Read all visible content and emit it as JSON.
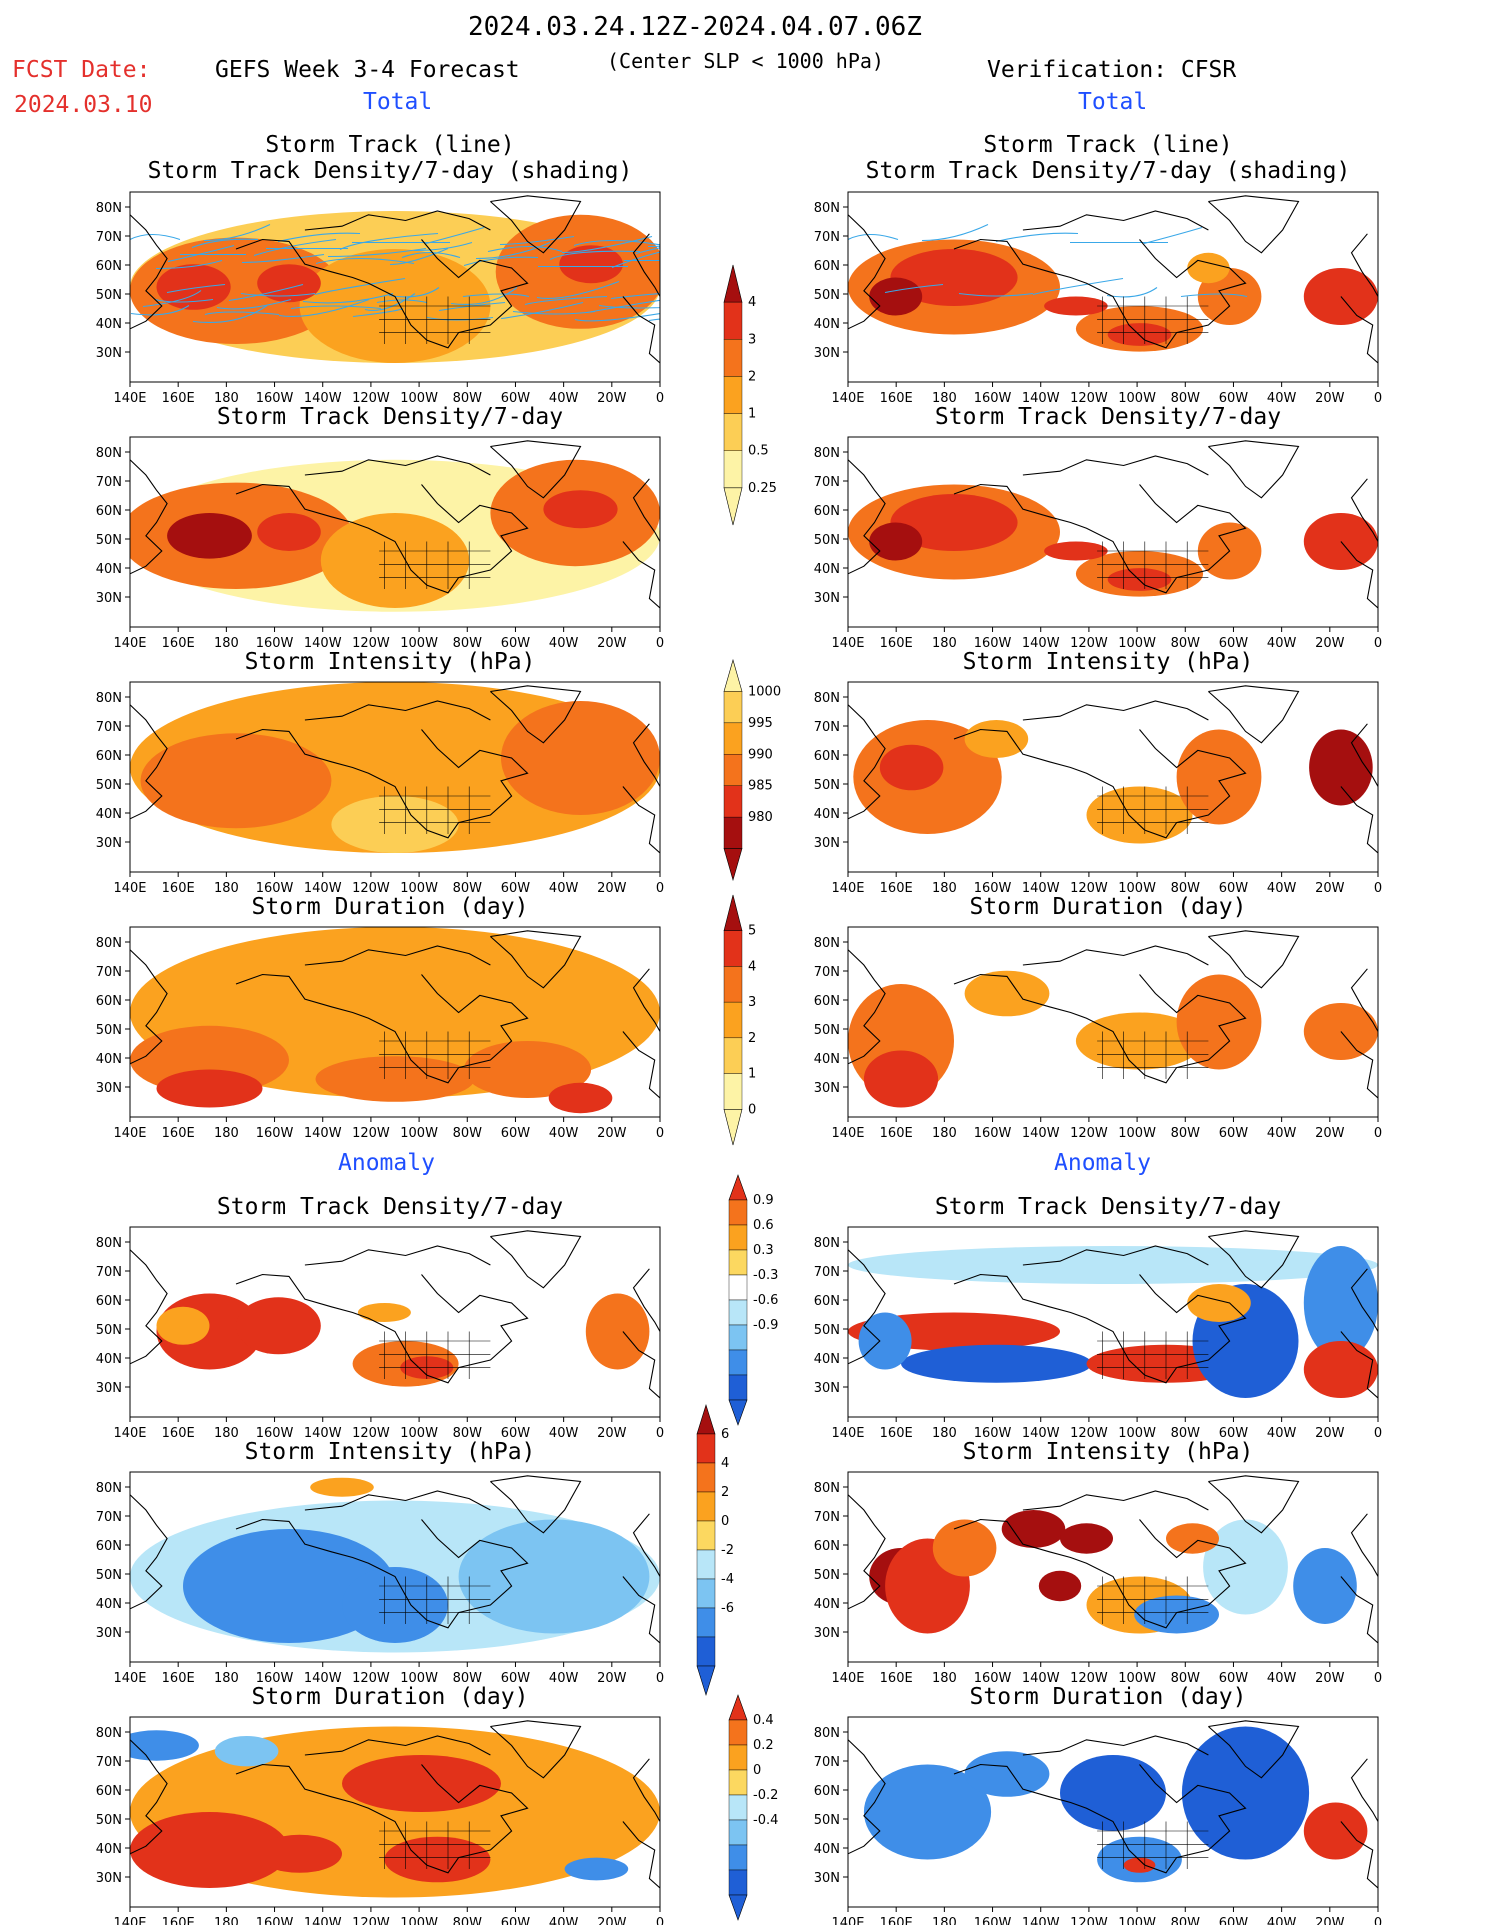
{
  "header": {
    "date_range": "2024.03.24.12Z-2024.04.07.06Z",
    "fcst_label": "FCST Date:",
    "fcst_date": "2024.03.10",
    "forecast_title": "GEFS Week 3-4 Forecast",
    "criterion": "(Center SLP < 1000 hPa)",
    "verification": "Verification: CFSR",
    "total_left": "Total",
    "total_right": "Total",
    "anomaly_left": "Anomaly",
    "anomaly_right": "Anomaly"
  },
  "panel_titles": {
    "track_line": "Storm Track (line)",
    "track_shading": "Storm Track Density/7-day (shading)",
    "density": "Storm Track Density/7-day",
    "intensity": "Storm Intensity (hPa)",
    "duration": "Storm Duration (day)"
  },
  "axes": {
    "lon_labels": [
      "140E",
      "160E",
      "180",
      "160W",
      "140W",
      "120W",
      "100W",
      "80W",
      "60W",
      "40W",
      "20W",
      "0"
    ],
    "lat_labels": [
      "80N",
      "70N",
      "60N",
      "50N",
      "40N",
      "30N"
    ]
  },
  "colorbars": {
    "density": {
      "labels": [
        "4",
        "3",
        "2",
        "1",
        "0.5",
        "0.25"
      ],
      "colors": [
        "#a50f0f",
        "#e2321a",
        "#f4731c",
        "#fba21f",
        "#fcce55",
        "#fdf3a6"
      ]
    },
    "intensity": {
      "labels": [
        "1000",
        "995",
        "990",
        "985",
        "980"
      ],
      "colors": [
        "#fdf3a6",
        "#fcce55",
        "#fba21f",
        "#f4731c",
        "#e2321a",
        "#a50f0f"
      ]
    },
    "duration": {
      "labels": [
        "5",
        "4",
        "3",
        "2",
        "1",
        "0"
      ],
      "colors": [
        "#a50f0f",
        "#e2321a",
        "#f4731c",
        "#fba21f",
        "#fcce55",
        "#fdf3a6"
      ]
    },
    "density_anom": {
      "labels": [
        "0.9",
        "0.6",
        "0.3",
        "-0.3",
        "-0.6",
        "-0.9"
      ],
      "colors": [
        "#e2321a",
        "#f4731c",
        "#fba21f",
        "#fcd860",
        "#ffffff",
        "#b8e6f8",
        "#7cc4f2",
        "#3f8ee8",
        "#1f5fd6"
      ]
    },
    "intensity_anom": {
      "labels": [
        "6",
        "4",
        "2",
        "0",
        "-2",
        "-4",
        "-6"
      ],
      "colors": [
        "#a50f0f",
        "#e2321a",
        "#f4731c",
        "#fba21f",
        "#fcd860",
        "#b8e6f8",
        "#7cc4f2",
        "#3f8ee8",
        "#1f5fd6"
      ]
    },
    "duration_anom": {
      "labels": [
        "0.4",
        "0.2",
        "0",
        "-0.2",
        "-0.4"
      ],
      "colors": [
        "#e2321a",
        "#f4731c",
        "#fba21f",
        "#fcd860",
        "#b8e6f8",
        "#7cc4f2",
        "#3f8ee8",
        "#1f5fd6"
      ]
    }
  }
}
